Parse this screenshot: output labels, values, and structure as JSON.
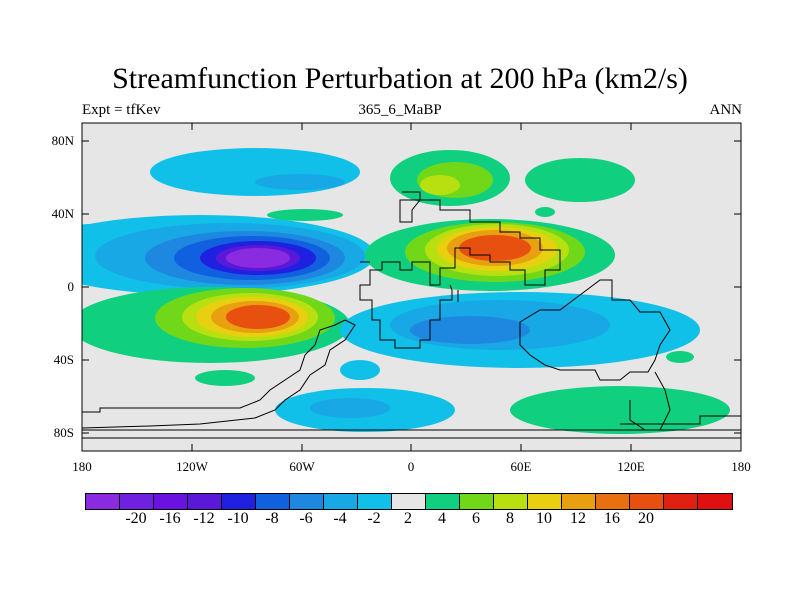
{
  "title": "Streamfunction Perturbation at 200 hPa (km2/s)",
  "left_subtitle": "Expt = tfKev",
  "center_subtitle": "365_6_MaBP",
  "right_subtitle": "ANN",
  "lat_labels": [
    "80N",
    "40N",
    "0",
    "40S",
    "80S"
  ],
  "lon_labels": [
    "180",
    "120W",
    "60W",
    "0",
    "60E",
    "120E",
    "180"
  ],
  "colors": {
    "background": "#e6e6e6",
    "levels": [
      "#8a2be2",
      "#6a12e0",
      "#5a18d8",
      "#2020e0",
      "#1060e0",
      "#1e88e0",
      "#18a8e6",
      "#10c0e8",
      "#e6e6e6",
      "#10d080",
      "#70d818",
      "#b8e010",
      "#e8d010",
      "#e8a010",
      "#e85010",
      "#e01010"
    ]
  },
  "colorbar": {
    "labels": [
      "-20",
      "-16",
      "-12",
      "-10",
      "-8",
      "-6",
      "-4",
      "-2",
      "2",
      "4",
      "6",
      "8",
      "10",
      "12",
      "16",
      "20"
    ]
  }
}
